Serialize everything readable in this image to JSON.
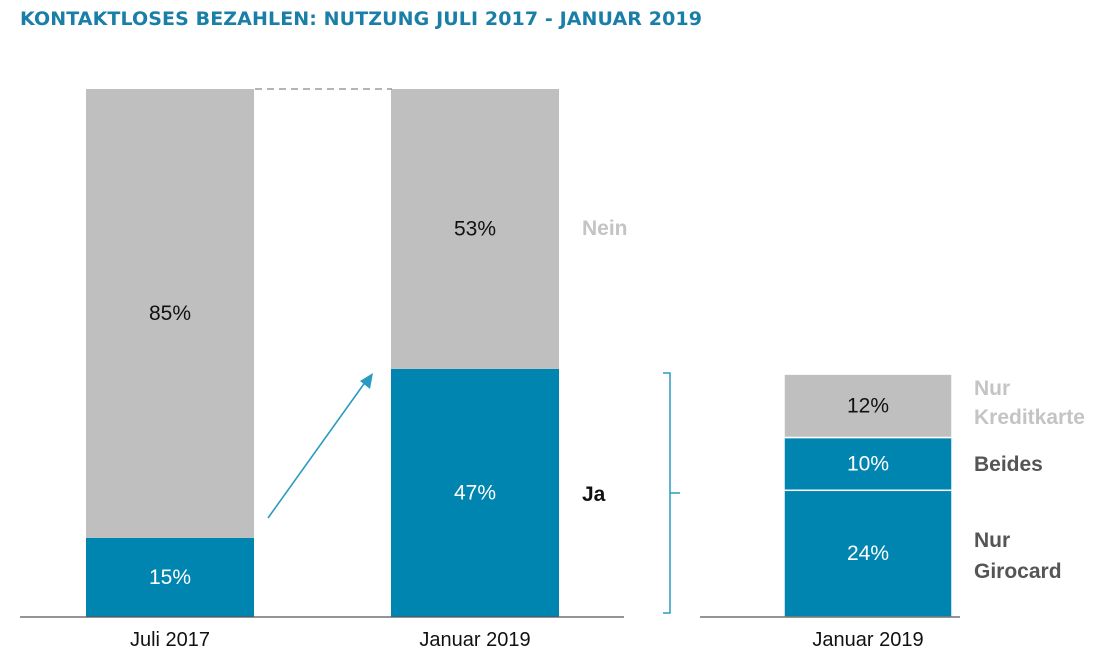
{
  "title": "KONTAKTLOSES BEZAHLEN: NUTZUNG JULI 2017 - JANUAR 2019",
  "colors": {
    "ja": "#0085b0",
    "nein": "#bfbfbf",
    "axis": "#555555",
    "arrow": "#2a9bc0",
    "dark_text": "#111111",
    "light_text": "#ffffff",
    "nein_label": "#c4c4c4",
    "breakdown_label": "#555555"
  },
  "chart_data": [
    {
      "type": "bar",
      "stacked": true,
      "categories": [
        "Juli 2017",
        "Januar 2019"
      ],
      "series": [
        {
          "name": "Ja",
          "values": [
            15,
            47
          ],
          "labels": [
            "15%",
            "47%"
          ]
        },
        {
          "name": "Nein",
          "values": [
            85,
            53
          ],
          "labels": [
            "85%",
            "53%"
          ]
        }
      ],
      "ylim": [
        0,
        100
      ]
    },
    {
      "type": "bar",
      "stacked": true,
      "categories": [
        "Januar 2019"
      ],
      "series": [
        {
          "name": "Nur Girocard",
          "values": [
            24
          ],
          "labels": [
            "24%"
          ]
        },
        {
          "name": "Beides",
          "values": [
            10
          ],
          "labels": [
            "10%"
          ]
        },
        {
          "name": "Nur Kreditkarte",
          "values": [
            12
          ],
          "labels": [
            "12%"
          ]
        }
      ],
      "ylim": [
        0,
        100
      ]
    }
  ],
  "side_labels": {
    "nein": "Nein",
    "ja": "Ja",
    "kredit_line1": "Nur",
    "kredit_line2": "Kreditkarte",
    "beides": "Beides",
    "giro_line1": "Nur",
    "giro_line2": "Girocard"
  }
}
